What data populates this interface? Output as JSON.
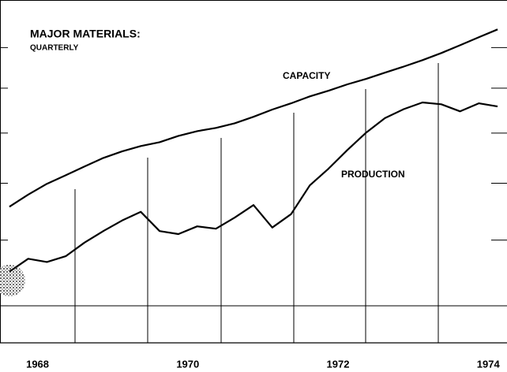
{
  "chart_data": {
    "type": "line",
    "title": "MAJOR MATERIALS:",
    "subtitle": "QUARTERLY",
    "annotations": [
      "CAPACITY",
      "PRODUCTION"
    ],
    "x": [
      1968.125,
      1968.375,
      1968.625,
      1968.875,
      1969.125,
      1969.375,
      1969.625,
      1969.875,
      1970.125,
      1970.375,
      1970.625,
      1970.875,
      1971.125,
      1971.375,
      1971.625,
      1971.875,
      1972.125,
      1972.375,
      1972.625,
      1972.875,
      1973.125,
      1973.375,
      1973.625,
      1973.875,
      1974.125,
      1974.375,
      1974.625
    ],
    "series": [
      {
        "name": "CAPACITY",
        "color": "#000000",
        "values": [
          75.7,
          77.9,
          79.9,
          81.5,
          83.2,
          84.9,
          86.2,
          87.3,
          88.1,
          89.4,
          90.4,
          91.1,
          92.1,
          93.5,
          95.1,
          96.5,
          98.1,
          99.4,
          100.9,
          102.2,
          103.7,
          105.2,
          106.8,
          108.6,
          110.6,
          112.7,
          114.8
        ]
      },
      {
        "name": "PRODUCTION",
        "color": "#000000",
        "values": [
          65.0,
          67.0,
          66.5,
          67.4,
          69.6,
          71.5,
          73.3,
          74.8,
          71.5,
          71.0,
          72.3,
          71.9,
          73.8,
          76.0,
          72.1,
          74.4,
          79.6,
          82.8,
          86.5,
          90.1,
          93.2,
          95.2,
          96.7,
          96.3,
          94.7,
          96.5,
          95.8
        ]
      }
    ],
    "xlim": [
      1968,
      1974.75
    ],
    "xticks": [
      {
        "value": 1968.5,
        "label": "1968"
      },
      {
        "value": 1970.5,
        "label": "1970"
      },
      {
        "value": 1972.5,
        "label": "1972"
      },
      {
        "value": 1974.5,
        "label": "1974"
      }
    ],
    "ylim": [
      55,
      123
    ],
    "yticks": [
      60,
      70,
      80,
      90,
      100,
      110
    ],
    "yscale": "log"
  }
}
